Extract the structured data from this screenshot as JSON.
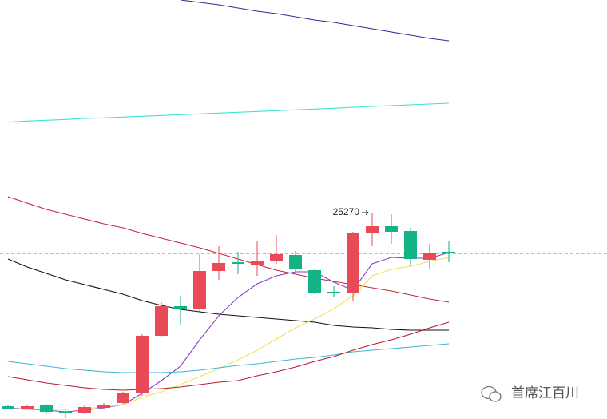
{
  "chart_data": {
    "type": "candlestick",
    "ylim": [
      24496,
      26068
    ],
    "up_color": "#e84a57",
    "down_color": "#13b386",
    "open": [
      24544,
      24535,
      24547,
      24523,
      24520,
      24538,
      24556,
      24592,
      24808,
      24919,
      24910,
      25051,
      25084,
      25075,
      25087,
      25111,
      25054,
      24973,
      24970,
      25192,
      25219,
      25201,
      25093,
      25123
    ],
    "high": [
      24550,
      24547,
      24553,
      24529,
      24550,
      24556,
      24598,
      24814,
      24934,
      24958,
      25114,
      25144,
      25123,
      25162,
      25186,
      25126,
      25060,
      24994,
      25198,
      25270,
      25264,
      25213,
      25153,
      25162
    ],
    "low": [
      24532,
      24532,
      24514,
      24499,
      24514,
      24532,
      24553,
      24583,
      24805,
      24847,
      24898,
      25018,
      25039,
      25033,
      25078,
      25048,
      24964,
      24952,
      24937,
      25144,
      25153,
      25069,
      25057,
      25084
    ],
    "close": [
      24535,
      24544,
      24523,
      24517,
      24541,
      24550,
      24592,
      24808,
      24919,
      24907,
      25051,
      25081,
      25078,
      25087,
      25114,
      25057,
      24970,
      24967,
      25192,
      25219,
      25198,
      25096,
      25117,
      25117
    ],
    "annotation": "25270",
    "last_price": 25117,
    "last_price_color": "#26a69a",
    "series": [
      {
        "color": "#2a2f9a",
        "values": [
          null,
          null,
          null,
          null,
          null,
          null,
          null,
          null,
          null,
          26068,
          26059,
          26050,
          26038,
          26026,
          26017,
          26005,
          25993,
          25984,
          25972,
          25960,
          25948,
          25936,
          25924,
          25915
        ]
      },
      {
        "color": "#3fe0d6",
        "values": [
          25610,
          25614,
          25617,
          25620,
          25624,
          25626,
          25629,
          25632,
          25635,
          25638,
          25641,
          25644,
          25647,
          25650,
          25653,
          25656,
          25659,
          25662,
          25666,
          25669,
          25672,
          25675,
          25678,
          25681
        ]
      },
      {
        "color": "#c0283a",
        "values": [
          25330,
          25306,
          25282,
          25264,
          25246,
          25228,
          25213,
          25192,
          25174,
          25156,
          25138,
          25117,
          25096,
          25075,
          25054,
          25039,
          25024,
          25012,
          25000,
          24988,
          24976,
          24961,
          24946,
          24934
        ]
      },
      {
        "color": "#111111",
        "values": [
          25096,
          25066,
          25042,
          25018,
          25000,
          24982,
          24964,
          24940,
          24922,
          24907,
          24898,
          24889,
          24883,
          24877,
          24871,
          24865,
          24859,
          24847,
          24841,
          24838,
          24832,
          24829,
          24829,
          24829
        ]
      },
      {
        "color": "#8a3fd0",
        "values": [
          24538,
          24532,
          24529,
          24523,
          24529,
          24538,
          24550,
          24592,
          24640,
          24694,
          24793,
          24883,
          24952,
          25003,
          25033,
          25048,
          25048,
          25009,
          24979,
          25078,
          25102,
          25099,
          25099,
          25120
        ]
      },
      {
        "color": "#f2e24a",
        "values": [
          24535,
          24532,
          24532,
          24532,
          24535,
          24541,
          24550,
          24577,
          24598,
          24625,
          24655,
          24685,
          24718,
          24754,
          24796,
          24838,
          24871,
          24910,
          24958,
          25033,
          25057,
          25069,
          25087,
          25102
        ]
      },
      {
        "color": "#3fb4d8",
        "values": [
          24712,
          24703,
          24694,
          24685,
          24679,
          24673,
          24670,
          24670,
          24670,
          24673,
          24679,
          24688,
          24697,
          24703,
          24712,
          24721,
          24727,
          24736,
          24748,
          24754,
          24760,
          24766,
          24772,
          24778
        ]
      },
      {
        "color": "#b81c30",
        "values": [
          24655,
          24643,
          24631,
          24622,
          24613,
          24607,
          24604,
          24607,
          24610,
          24616,
          24625,
          24634,
          24640,
          24658,
          24673,
          24691,
          24712,
          24730,
          24754,
          24775,
          24793,
          24814,
          24838,
          24859
        ]
      }
    ],
    "watermark": "首席江百川"
  }
}
